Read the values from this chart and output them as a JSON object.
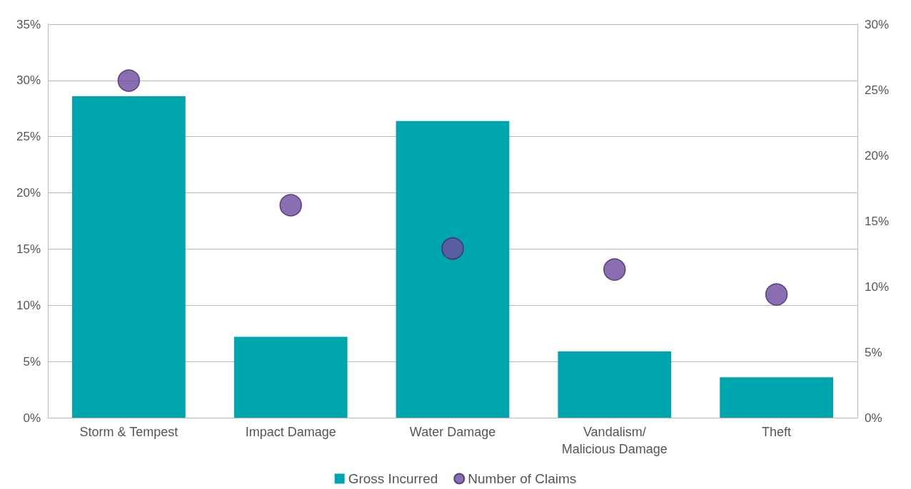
{
  "chart_data": {
    "type": "bar",
    "categories": [
      "Storm & Tempest",
      "Impact Damage",
      "Water Damage",
      "Vandalism/\nMalicious Damage",
      "Theft"
    ],
    "series": [
      {
        "name": "Gross Incurred",
        "color": "#00a6ae",
        "values": [
          28.6,
          7.2,
          26.4,
          5.9,
          3.6
        ]
      },
      {
        "name": "Number of Claims",
        "type": "scatter",
        "axis": "y2",
        "color": "#6e4a9e",
        "marker": "circle",
        "x": [
          "Storm & Tempest",
          "Impact Damage",
          "Water Damage",
          "Vandalism/\nMalicious Damage",
          "Theft"
        ],
        "values": [
          25.7,
          16.2,
          12.9,
          11.3,
          9.4
        ]
      }
    ],
    "ylim": [
      0,
      35
    ],
    "yticks": [
      {
        "value": 0,
        "label": "0%"
      },
      {
        "value": 5,
        "label": "5%"
      },
      {
        "value": 10,
        "label": "10%"
      },
      {
        "value": 15,
        "label": "15%"
      },
      {
        "value": 20,
        "label": "20%"
      },
      {
        "value": 25,
        "label": "25%"
      },
      {
        "value": 30,
        "label": "30%"
      },
      {
        "value": 35,
        "label": "35%"
      }
    ],
    "y2lim": [
      0,
      30
    ],
    "y2ticks": [
      {
        "value": 0,
        "label": "0%"
      },
      {
        "value": 5,
        "label": "5%"
      },
      {
        "value": 10,
        "label": "10%"
      },
      {
        "value": 15,
        "label": "15%"
      },
      {
        "value": 20,
        "label": "20%"
      },
      {
        "value": 25,
        "label": "25%"
      },
      {
        "value": 30,
        "label": "30%"
      }
    ],
    "grid": "y",
    "legend": "bottom"
  }
}
